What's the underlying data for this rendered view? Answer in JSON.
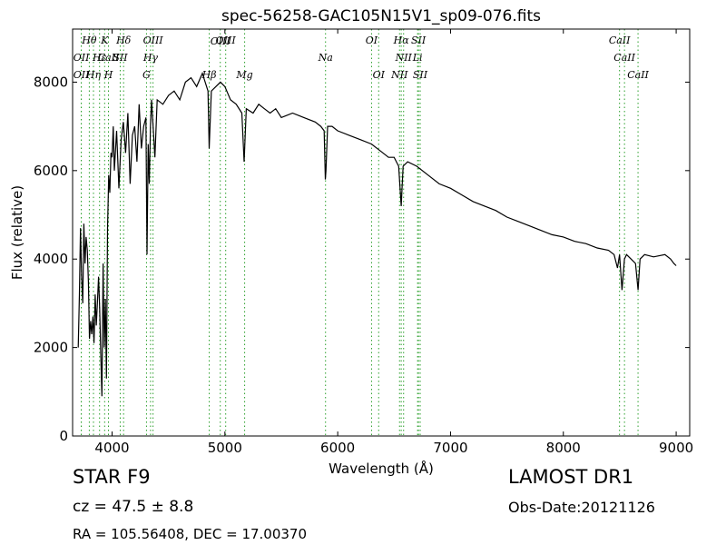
{
  "chart_data": {
    "type": "line",
    "title": "spec-56258-GAC105N15V1_sp09-076.fits",
    "xlabel": "Wavelength (Å)",
    "ylabel": "Flux (relative)",
    "xlim": [
      3650,
      9120
    ],
    "ylim": [
      0,
      9200
    ],
    "xticks": [
      4000,
      5000,
      6000,
      7000,
      8000,
      9000
    ],
    "yticks": [
      0,
      2000,
      4000,
      6000,
      8000
    ],
    "line_color": "#000000",
    "marker_color": "#2ca02c",
    "spectrum": {
      "x": [
        3700,
        3710,
        3720,
        3730,
        3740,
        3750,
        3760,
        3770,
        3780,
        3790,
        3800,
        3810,
        3820,
        3830,
        3840,
        3850,
        3860,
        3870,
        3880,
        3890,
        3900,
        3910,
        3920,
        3930,
        3940,
        3950,
        3960,
        3970,
        3980,
        3990,
        4000,
        4010,
        4020,
        4040,
        4060,
        4080,
        4100,
        4120,
        4140,
        4160,
        4180,
        4200,
        4220,
        4240,
        4260,
        4280,
        4300,
        4310,
        4320,
        4330,
        4340,
        4350,
        4380,
        4400,
        4450,
        4500,
        4550,
        4600,
        4650,
        4700,
        4750,
        4800,
        4850,
        4861,
        4880,
        4920,
        4960,
        5000,
        5050,
        5100,
        5150,
        5170,
        5190,
        5250,
        5300,
        5350,
        5400,
        5450,
        5500,
        5600,
        5700,
        5800,
        5850,
        5880,
        5890,
        5896,
        5910,
        5950,
        6000,
        6100,
        6200,
        6300,
        6400,
        6450,
        6500,
        6540,
        6563,
        6580,
        6620,
        6700,
        6800,
        6900,
        7000,
        7100,
        7200,
        7300,
        7400,
        7500,
        7600,
        7700,
        7800,
        7900,
        8000,
        8100,
        8200,
        8300,
        8400,
        8450,
        8480,
        8498,
        8520,
        8542,
        8560,
        8600,
        8640,
        8662,
        8680,
        8720,
        8800,
        8900,
        8950,
        8980,
        9000
      ],
      "y": [
        2000,
        3200,
        4700,
        3600,
        3000,
        4800,
        3900,
        4500,
        4200,
        3500,
        2200,
        2600,
        2300,
        2700,
        2100,
        3200,
        2500,
        3000,
        3600,
        2900,
        1800,
        900,
        3900,
        2000,
        3100,
        1300,
        4700,
        5900,
        5500,
        6400,
        6300,
        7000,
        6000,
        6900,
        5600,
        6700,
        7100,
        6400,
        7300,
        5700,
        6800,
        7000,
        6200,
        7500,
        6500,
        7000,
        7200,
        4100,
        6600,
        5700,
        7000,
        7600,
        6300,
        7600,
        7500,
        7700,
        7800,
        7600,
        8000,
        8100,
        7900,
        8200,
        7800,
        6500,
        7800,
        7900,
        8000,
        7900,
        7600,
        7500,
        7300,
        6200,
        7400,
        7300,
        7500,
        7400,
        7300,
        7400,
        7200,
        7300,
        7200,
        7100,
        7000,
        6900,
        5800,
        6000,
        7000,
        7000,
        6900,
        6800,
        6700,
        6600,
        6400,
        6300,
        6300,
        6100,
        5200,
        6100,
        6200,
        6100,
        5900,
        5700,
        5600,
        5450,
        5300,
        5200,
        5100,
        4950,
        4850,
        4750,
        4650,
        4550,
        4500,
        4400,
        4350,
        4250,
        4200,
        4100,
        3800,
        4100,
        3300,
        4000,
        4100,
        4000,
        3900,
        3300,
        4000,
        4100,
        4050,
        4100,
        4000,
        3900,
        3850
      ]
    },
    "lines": [
      {
        "label": "Hθ",
        "wl": 3798,
        "row": 0
      },
      {
        "label": "Hη",
        "wl": 3835,
        "row": 2
      },
      {
        "label": "K",
        "wl": 3934,
        "row": 0
      },
      {
        "label": "Hδ",
        "wl": 4102,
        "row": 0
      },
      {
        "label": "OIII",
        "wl": 4363,
        "row": 0
      },
      {
        "label": "OIII",
        "wl": 5007,
        "row": 0
      },
      {
        "label": "OI",
        "wl": 6300,
        "row": 0
      },
      {
        "label": "Hα",
        "wl": 6563,
        "row": 0
      },
      {
        "label": "SII",
        "wl": 6716,
        "row": 0
      },
      {
        "label": "CaII",
        "wl": 8498,
        "row": 0
      },
      {
        "label": "OII",
        "wl": 3727,
        "row": 1
      },
      {
        "label": "Hε",
        "wl": 3889,
        "row": 1
      },
      {
        "label": "CaII",
        "wl": 3968,
        "row": 1
      },
      {
        "label": "SII",
        "wl": 4072,
        "row": 1
      },
      {
        "label": "Hγ",
        "wl": 4341,
        "row": 1
      },
      {
        "label": "Na",
        "wl": 5892,
        "row": 1
      },
      {
        "label": "NII",
        "wl": 6584,
        "row": 1
      },
      {
        "label": "Li",
        "wl": 6708,
        "row": 1
      },
      {
        "label": "CaII",
        "wl": 8542,
        "row": 1
      },
      {
        "label": "OII",
        "wl": 3727,
        "row": 2
      },
      {
        "label": "H",
        "wl": 3968,
        "row": 2
      },
      {
        "label": "G",
        "wl": 4305,
        "row": 2
      },
      {
        "label": "Hβ",
        "wl": 4861,
        "row": 2
      },
      {
        "label": "Mg",
        "wl": 5175,
        "row": 2
      },
      {
        "label": "OI",
        "wl": 6363,
        "row": 2
      },
      {
        "label": "NII",
        "wl": 6548,
        "row": 2
      },
      {
        "label": "SII",
        "wl": 6731,
        "row": 2
      },
      {
        "label": "CaII",
        "wl": 8662,
        "row": 2
      },
      {
        "label": "OIII",
        "wl": 4959,
        "row": 3
      }
    ]
  },
  "info": {
    "object_class": "STAR   F9",
    "cz": "cz = 47.5  ± 8.8",
    "radec": "RA = 105.56408, DEC = 17.00370",
    "survey": "LAMOST DR1",
    "obs_date": "Obs-Date:20121126"
  }
}
